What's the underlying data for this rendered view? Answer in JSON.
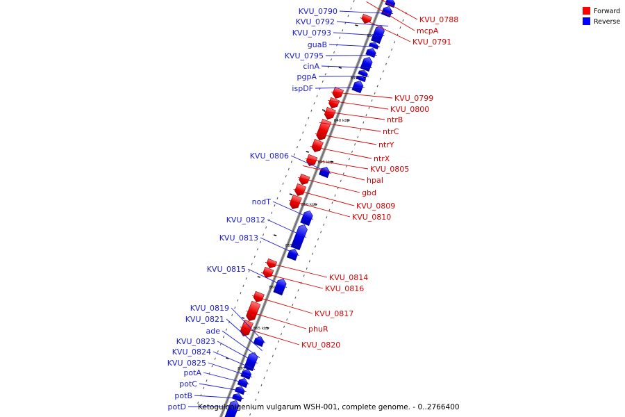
{
  "title": "Ketogulonigenium vulgarum WSH-001, complete genome. - 0..2766400",
  "legend": [
    {
      "label": "Forward",
      "color": "#ff0000"
    },
    {
      "label": "Reverse",
      "color": "#0000ff"
    }
  ],
  "colors": {
    "forward": "#ee0000",
    "reverse": "#0000ee",
    "forward_label": "#d40000",
    "reverse_label": "#1a1acc",
    "backbone": "#888888"
  },
  "scale_labels": [
    "830 kbp",
    "835 kbp",
    "840 kbp",
    "845 kbp",
    "850 kbp",
    "855 kbp",
    "860 kbp",
    "865 kbp",
    "870 kbp"
  ],
  "genes_forward": [
    "KVU_0788",
    "mcpA",
    "KVU_0791",
    "KVU_0799",
    "KVU_0800",
    "ntrB",
    "ntrC",
    "ntrY",
    "ntrX",
    "KVU_0805",
    "hpaI",
    "gbd",
    "KVU_0809",
    "KVU_0810",
    "KVU_0814",
    "KVU_0816",
    "KVU_0817",
    "phuR",
    "KVU_0820"
  ],
  "genes_reverse": [
    "KVU_0790",
    "KVU_0792",
    "KVU_0793",
    "guaB",
    "KVU_0795",
    "cinA",
    "pgpA",
    "ispDF",
    "KVU_0806",
    "nodT",
    "KVU_0812",
    "KVU_0813",
    "KVU_0815",
    "KVU_0819",
    "KVU_0821",
    "ade",
    "KVU_0823",
    "KVU_0824",
    "KVU_0825",
    "potA",
    "potC",
    "potB",
    "potD"
  ]
}
